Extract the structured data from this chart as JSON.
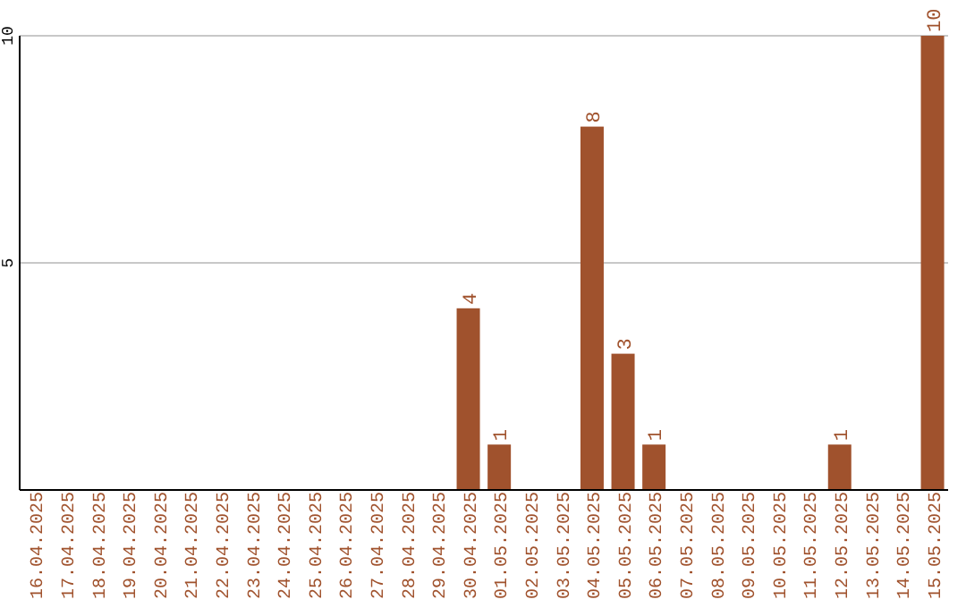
{
  "chart_data": {
    "type": "bar",
    "categories": [
      "16.04.2025",
      "17.04.2025",
      "18.04.2025",
      "19.04.2025",
      "20.04.2025",
      "21.04.2025",
      "22.04.2025",
      "23.04.2025",
      "24.04.2025",
      "25.04.2025",
      "26.04.2025",
      "27.04.2025",
      "28.04.2025",
      "29.04.2025",
      "30.04.2025",
      "01.05.2025",
      "02.05.2025",
      "03.05.2025",
      "04.05.2025",
      "05.05.2025",
      "06.05.2025",
      "07.05.2025",
      "08.05.2025",
      "09.05.2025",
      "10.05.2025",
      "11.05.2025",
      "12.05.2025",
      "13.05.2025",
      "14.05.2025",
      "15.05.2025"
    ],
    "values": [
      0,
      0,
      0,
      0,
      0,
      0,
      0,
      0,
      0,
      0,
      0,
      0,
      0,
      0,
      4,
      1,
      0,
      0,
      8,
      3,
      1,
      0,
      0,
      0,
      0,
      0,
      1,
      0,
      0,
      10
    ],
    "value_labels": [
      null,
      null,
      null,
      null,
      null,
      null,
      null,
      null,
      null,
      null,
      null,
      null,
      null,
      null,
      "4",
      "1",
      null,
      null,
      "8",
      "3",
      "1",
      null,
      null,
      null,
      null,
      null,
      "1",
      null,
      null,
      "10"
    ],
    "color": "#a0522d",
    "ylim": [
      0,
      10
    ],
    "yticks": [
      5,
      10
    ],
    "grid": "y"
  }
}
